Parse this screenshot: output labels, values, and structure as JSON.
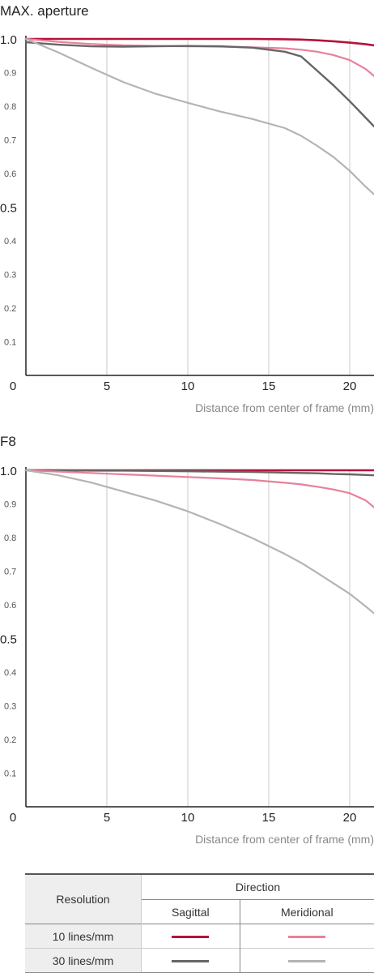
{
  "chart_data": [
    {
      "type": "line",
      "title": "MAX. aperture",
      "xlabel": "Distance from center of frame (mm)",
      "ylabel": "",
      "xlim": [
        0,
        21.5
      ],
      "ylim": [
        0,
        1.0
      ],
      "x_ticks": [
        "0",
        "5",
        "10",
        "15",
        "20"
      ],
      "y_ticks": [
        "0.1",
        "0.2",
        "0.3",
        "0.4",
        "0.5",
        "0.6",
        "0.7",
        "0.8",
        "0.9",
        "1.0"
      ],
      "grid": true,
      "x": [
        0,
        2,
        4,
        6,
        8,
        10,
        12,
        14,
        16,
        17,
        18,
        19,
        20,
        21,
        21.5
      ],
      "series": [
        {
          "color": "#b5123a",
          "width": 2.6,
          "values": [
            1.0,
            1.0,
            1.0,
            1.0,
            1.0,
            1.0,
            1.0,
            1.0,
            0.999,
            0.998,
            0.996,
            0.993,
            0.989,
            0.984,
            0.981
          ]
        },
        {
          "color": "#e8809a",
          "width": 2.2,
          "values": [
            1.0,
            0.991,
            0.985,
            0.981,
            0.979,
            0.978,
            0.977,
            0.975,
            0.972,
            0.968,
            0.962,
            0.952,
            0.937,
            0.91,
            0.89
          ]
        },
        {
          "color": "#666666",
          "width": 2.4,
          "values": [
            0.99,
            0.983,
            0.978,
            0.977,
            0.978,
            0.979,
            0.978,
            0.974,
            0.962,
            0.948,
            0.905,
            0.862,
            0.815,
            0.765,
            0.74
          ]
        },
        {
          "color": "#b4b4b4",
          "width": 2.2,
          "values": [
            1.0,
            0.96,
            0.915,
            0.872,
            0.837,
            0.81,
            0.784,
            0.762,
            0.735,
            0.712,
            0.682,
            0.649,
            0.608,
            0.56,
            0.538
          ]
        }
      ]
    },
    {
      "type": "line",
      "title": "F8",
      "xlabel": "Distance from center of frame (mm)",
      "ylabel": "",
      "xlim": [
        0,
        21.5
      ],
      "ylim": [
        0,
        1.0
      ],
      "x_ticks": [
        "0",
        "5",
        "10",
        "15",
        "20"
      ],
      "y_ticks": [
        "0.1",
        "0.2",
        "0.3",
        "0.4",
        "0.5",
        "0.6",
        "0.7",
        "0.8",
        "0.9",
        "1.0"
      ],
      "grid": true,
      "x": [
        0,
        2,
        4,
        6,
        8,
        10,
        12,
        14,
        16,
        17,
        18,
        19,
        20,
        21,
        21.5
      ],
      "series": [
        {
          "color": "#b5123a",
          "width": 2.6,
          "values": [
            1.0,
            1.0,
            1.0,
            1.0,
            1.0,
            1.0,
            1.0,
            1.0,
            1.0,
            1.0,
            1.0,
            1.0,
            1.0,
            1.0,
            1.0
          ]
        },
        {
          "color": "#666666",
          "width": 2.4,
          "values": [
            1.0,
            1.0,
            0.999,
            0.999,
            0.998,
            0.997,
            0.996,
            0.995,
            0.993,
            0.992,
            0.991,
            0.989,
            0.988,
            0.986,
            0.985
          ]
        },
        {
          "color": "#e8809a",
          "width": 2.2,
          "values": [
            1.0,
            0.996,
            0.992,
            0.988,
            0.984,
            0.98,
            0.976,
            0.971,
            0.963,
            0.958,
            0.951,
            0.943,
            0.932,
            0.91,
            0.89
          ]
        },
        {
          "color": "#b4b4b4",
          "width": 2.2,
          "values": [
            1.0,
            0.985,
            0.964,
            0.937,
            0.91,
            0.878,
            0.84,
            0.798,
            0.751,
            0.725,
            0.695,
            0.664,
            0.633,
            0.595,
            0.575
          ]
        }
      ]
    }
  ],
  "legend": {
    "resolution_header": "Resolution",
    "direction_header": "Direction",
    "sagittal": "Sagittal",
    "meridional": "Meridional",
    "rows": [
      {
        "label": "10 lines/mm",
        "sagittal_color": "#b5123a",
        "meridional_color": "#e8809a"
      },
      {
        "label": "30 lines/mm",
        "sagittal_color": "#666666",
        "meridional_color": "#b4b4b4"
      }
    ]
  }
}
